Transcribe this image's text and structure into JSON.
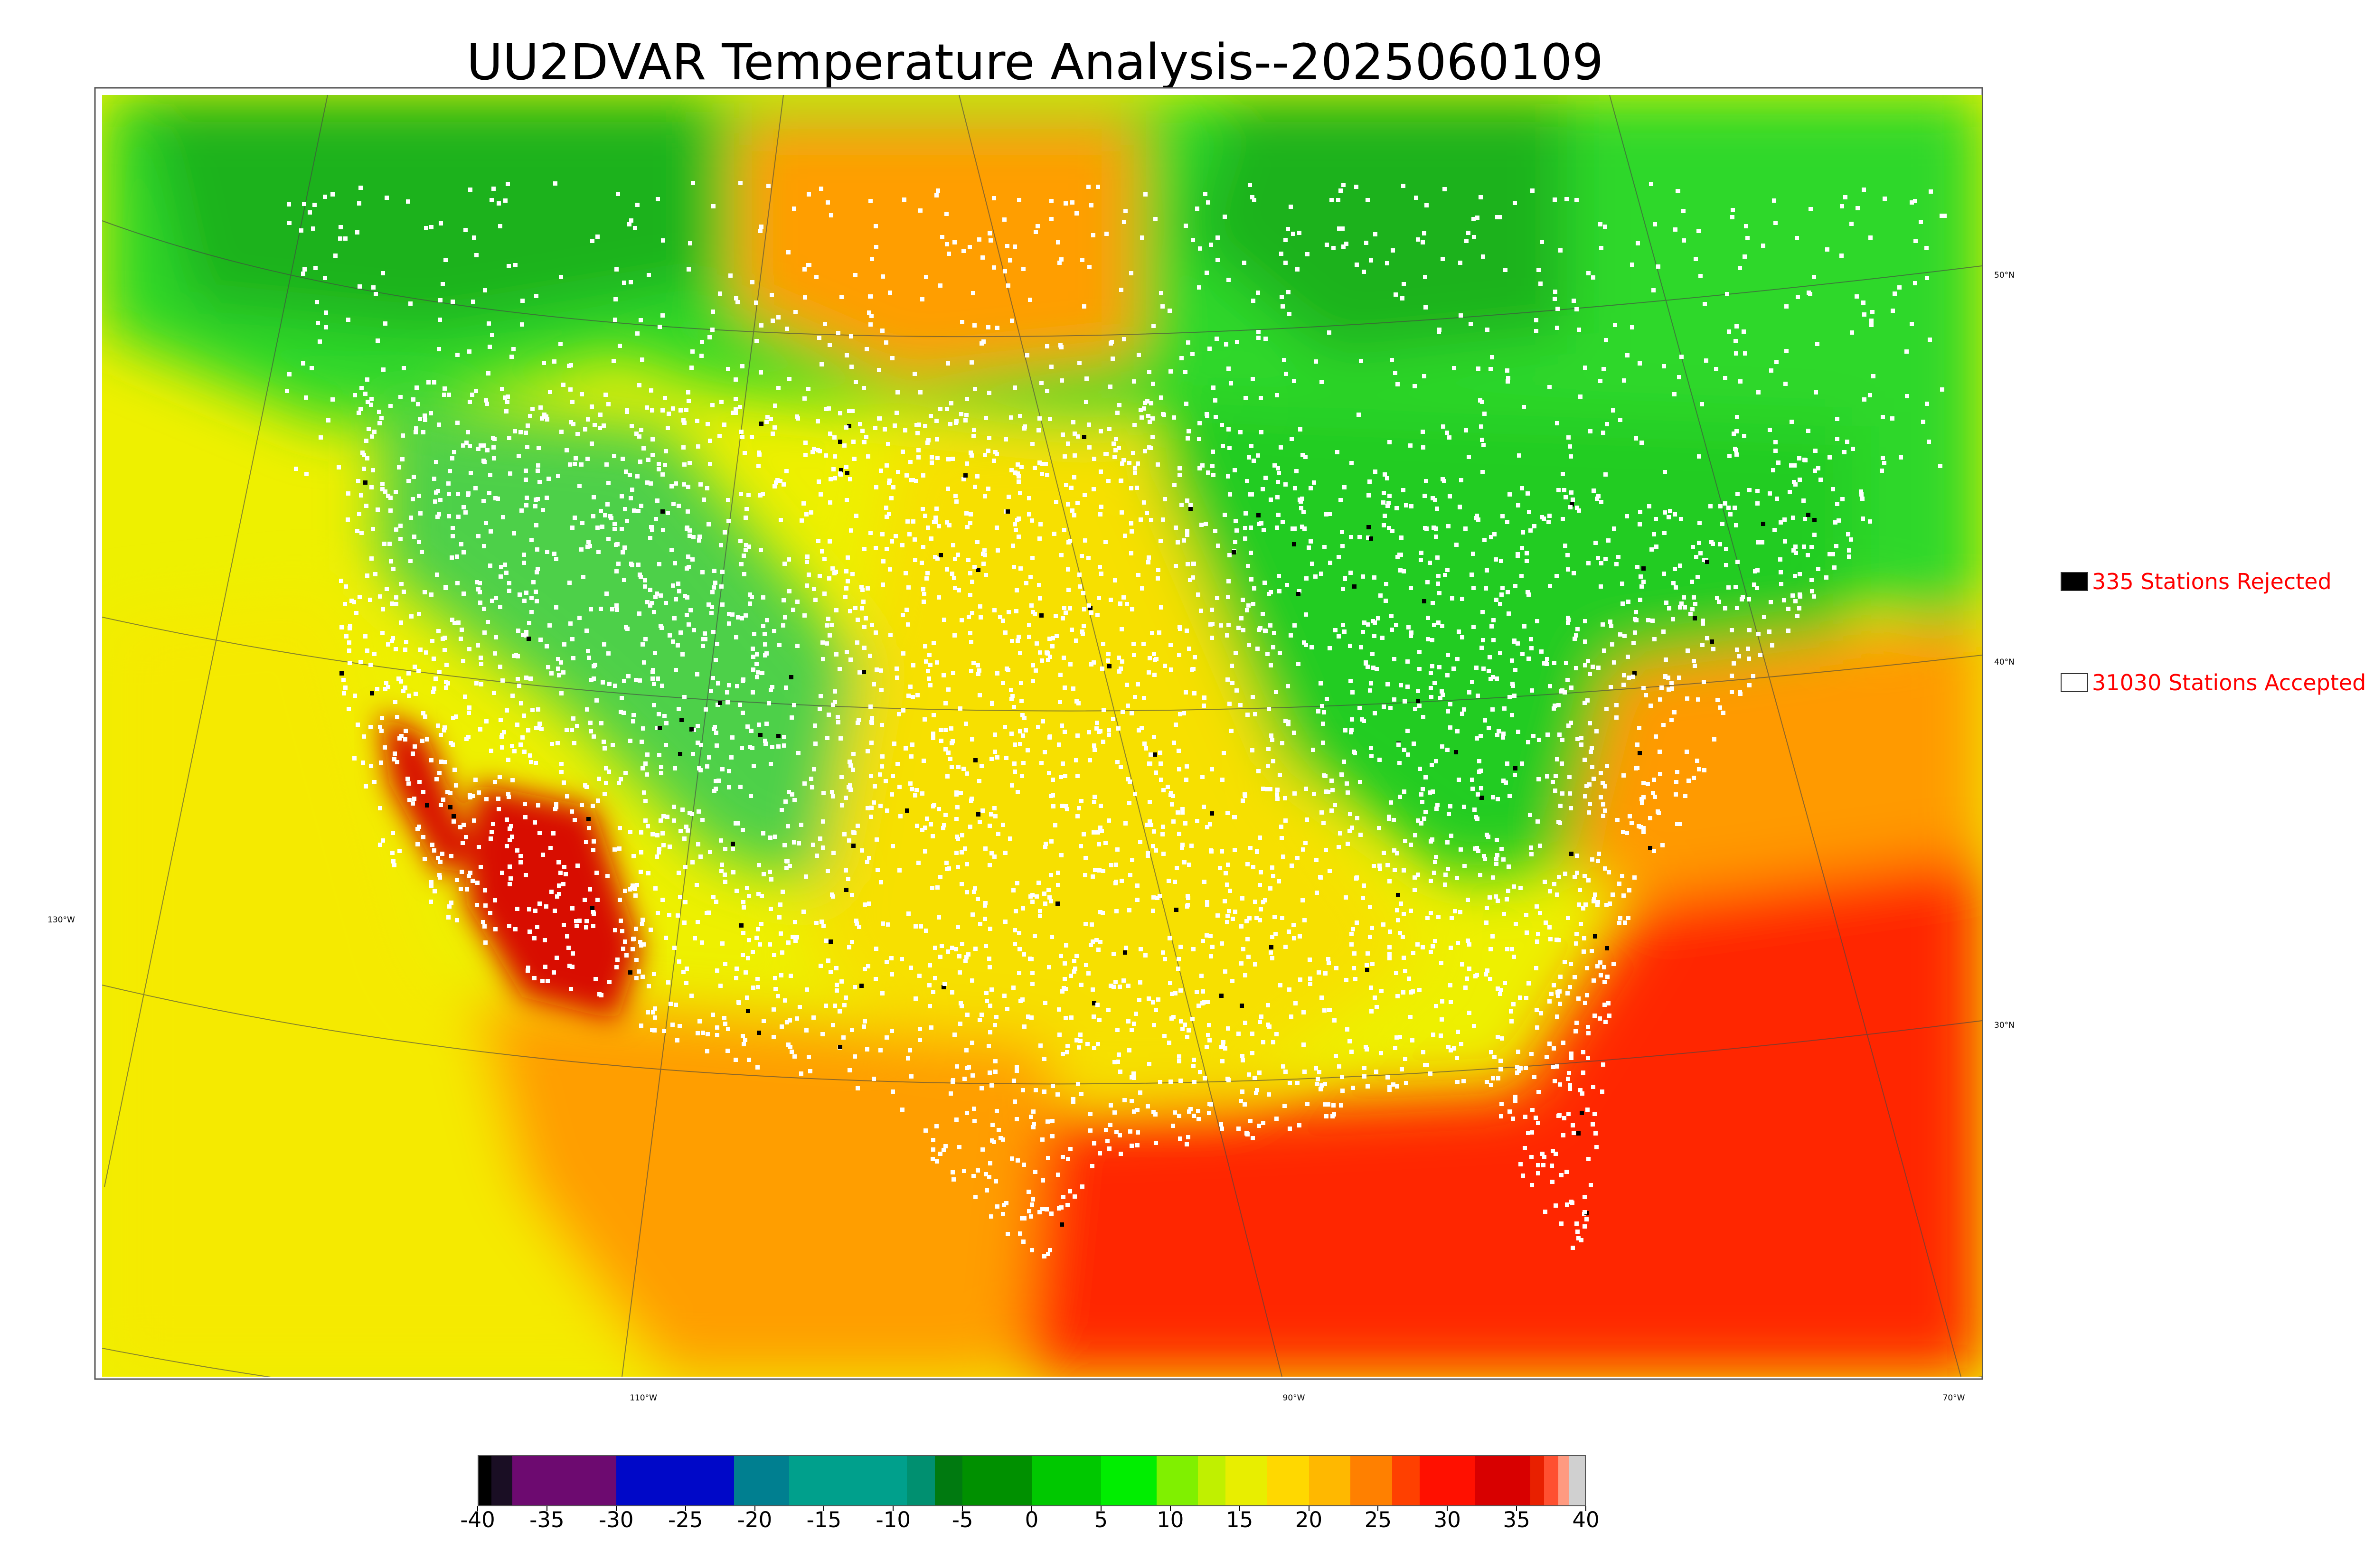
{
  "title": "UU2DVAR Temperature Analysis--2025060109",
  "legend": {
    "rejected": {
      "label": "335 Stations Rejected",
      "swatch_color": "#000000"
    },
    "accepted": {
      "label": "31030 Stations Accepted",
      "swatch_color": "#ffffff"
    }
  },
  "graticule": {
    "longitude_labels": [
      "110°W",
      "90°W",
      "70°W"
    ],
    "latitude_labels": [
      "50°N",
      "40°N",
      "30°N"
    ],
    "west_label": "130°W"
  },
  "colorbar": {
    "range": [
      -40,
      40
    ],
    "tick_values": [
      -40,
      -35,
      -30,
      -25,
      -20,
      -15,
      -10,
      -5,
      0,
      5,
      10,
      15,
      20,
      25,
      30,
      35,
      40
    ],
    "tick_labels": [
      "-40",
      "-35",
      "-30",
      "-25",
      "-20",
      "-15",
      "-10",
      "-5",
      "0",
      "5",
      "10",
      "15",
      "20",
      "25",
      "30",
      "35",
      "40"
    ],
    "segments": [
      {
        "from": -40,
        "to": -39,
        "color": "#000000"
      },
      {
        "from": -39,
        "to": -37.5,
        "color": "#1a0e24"
      },
      {
        "from": -37.5,
        "to": -30,
        "color": "#6d0a70"
      },
      {
        "from": -30,
        "to": -21.5,
        "color": "#0008c8"
      },
      {
        "from": -21.5,
        "to": -17.5,
        "color": "#007f90"
      },
      {
        "from": -17.5,
        "to": -9,
        "color": "#00a08c"
      },
      {
        "from": -9,
        "to": -7,
        "color": "#009070"
      },
      {
        "from": -7,
        "to": -5,
        "color": "#007a10"
      },
      {
        "from": -5,
        "to": 0,
        "color": "#009000"
      },
      {
        "from": 0,
        "to": 5,
        "color": "#00c800"
      },
      {
        "from": 5,
        "to": 9,
        "color": "#00ee00"
      },
      {
        "from": 9,
        "to": 12,
        "color": "#80f000"
      },
      {
        "from": 12,
        "to": 14,
        "color": "#c0f000"
      },
      {
        "from": 14,
        "to": 17,
        "color": "#e8ee00"
      },
      {
        "from": 17,
        "to": 20,
        "color": "#ffd800"
      },
      {
        "from": 20,
        "to": 23,
        "color": "#ffb800"
      },
      {
        "from": 23,
        "to": 26,
        "color": "#ff8000"
      },
      {
        "from": 26,
        "to": 28,
        "color": "#ff4000"
      },
      {
        "from": 28,
        "to": 32,
        "color": "#ff1000"
      },
      {
        "from": 32,
        "to": 36,
        "color": "#d80000"
      },
      {
        "from": 36,
        "to": 37,
        "color": "#e82000"
      },
      {
        "from": 37,
        "to": 38,
        "color": "#ff5030"
      },
      {
        "from": 38,
        "to": 38.8,
        "color": "#ff9a80"
      },
      {
        "from": 38.8,
        "to": 40,
        "color": "#d0d0d0"
      }
    ]
  },
  "field": {
    "background": "#eef000",
    "canada_color": "#2ed82a",
    "northern_dark_color": "#1fb21f",
    "northeast_color": "#22cc22",
    "gulf_atlantic_color": "#ff2800",
    "atlantic_orange_color": "#ff9a00",
    "southwest_hot_color": "#d81000",
    "plains_color": "#f7e000",
    "rockies_green_color": "#4ed04a",
    "mexico_color": "#ff9e00",
    "pacific_color": "#f5ea00",
    "station_color": "#ffffff",
    "rejected_color": "#000000"
  }
}
